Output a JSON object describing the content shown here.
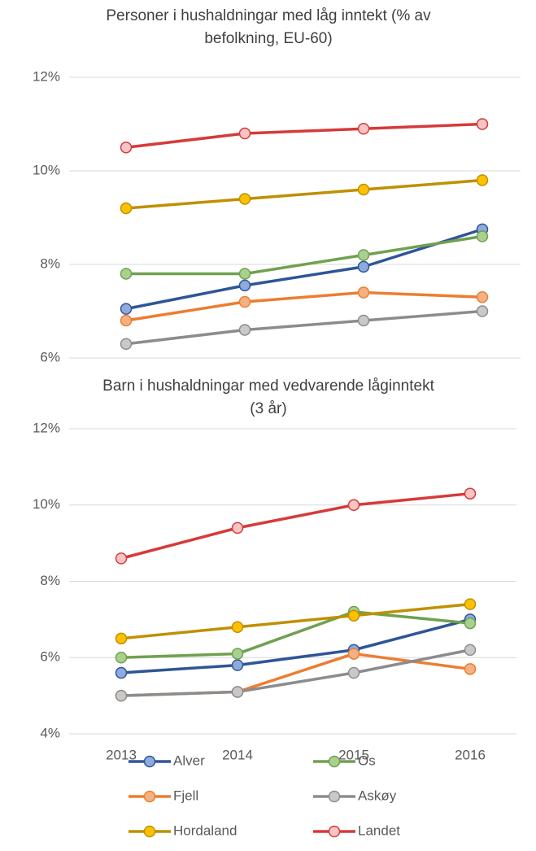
{
  "chart_data": [
    {
      "type": "line",
      "title": [
        "Personer i hushaldningar med låg inntekt (% av",
        "befolkning, EU-60)"
      ],
      "categories": [
        null,
        null,
        null,
        null
      ],
      "ylim": [
        6,
        12
      ],
      "yticks": [
        {
          "value": 6,
          "label": "6%"
        },
        {
          "value": 8,
          "label": "8%"
        },
        {
          "value": 10,
          "label": "10%"
        },
        {
          "value": 12,
          "label": "12%"
        }
      ],
      "grid": true,
      "series": [
        {
          "color": "#2f5597",
          "marker_color": "#8faadc",
          "values": [
            7.05,
            7.55,
            7.95,
            8.75
          ]
        },
        {
          "color": "#70a050",
          "marker_color": "#a9d18e",
          "values": [
            7.8,
            7.8,
            8.2,
            8.6
          ]
        },
        {
          "color": "#ed7d31",
          "marker_color": "#f4b183",
          "values": [
            6.8,
            7.2,
            7.4,
            7.3
          ]
        },
        {
          "color": "#8c8c8c",
          "marker_color": "#c9c9c9",
          "values": [
            6.3,
            6.6,
            6.8,
            7.0
          ]
        },
        {
          "color": "#bf9000",
          "marker_color": "#ffc000",
          "values": [
            9.2,
            9.4,
            9.6,
            9.8
          ]
        },
        {
          "color": "#d63a3a",
          "marker_color": "#f8c4c4",
          "values": [
            10.5,
            10.8,
            10.9,
            11.0
          ]
        }
      ]
    },
    {
      "type": "line",
      "title": [
        "Barn i hushaldningar med vedvarende låginntekt",
        "(3 år)"
      ],
      "categories": [
        "2013",
        "2014",
        "2015",
        "2016"
      ],
      "ylim": [
        4,
        12
      ],
      "yticks": [
        {
          "value": 4,
          "label": "4%"
        },
        {
          "value": 6,
          "label": "6%"
        },
        {
          "value": 8,
          "label": "8%"
        },
        {
          "value": 10,
          "label": "10%"
        },
        {
          "value": 12,
          "label": "12%"
        }
      ],
      "grid": true,
      "legend": "bottom",
      "series": [
        {
          "name": "Alver",
          "color": "#2f5597",
          "marker_color": "#8faadc",
          "values": [
            5.6,
            5.8,
            6.2,
            7.0
          ]
        },
        {
          "name": "Os",
          "color": "#70a050",
          "marker_color": "#a9d18e",
          "values": [
            6.0,
            6.1,
            7.2,
            6.9
          ]
        },
        {
          "name": "Fjell",
          "color": "#ed7d31",
          "marker_color": "#f4b183",
          "values": [
            5.0,
            5.1,
            6.1,
            5.7
          ]
        },
        {
          "name": "Askøy",
          "color": "#8c8c8c",
          "marker_color": "#c9c9c9",
          "values": [
            5.0,
            5.1,
            5.6,
            6.2
          ]
        },
        {
          "name": "Hordaland",
          "color": "#bf9000",
          "marker_color": "#ffc000",
          "values": [
            6.5,
            6.8,
            7.1,
            7.4
          ]
        },
        {
          "name": "Landet",
          "color": "#d63a3a",
          "marker_color": "#f8c4c4",
          "values": [
            8.6,
            9.4,
            10.0,
            10.3
          ]
        }
      ]
    }
  ]
}
